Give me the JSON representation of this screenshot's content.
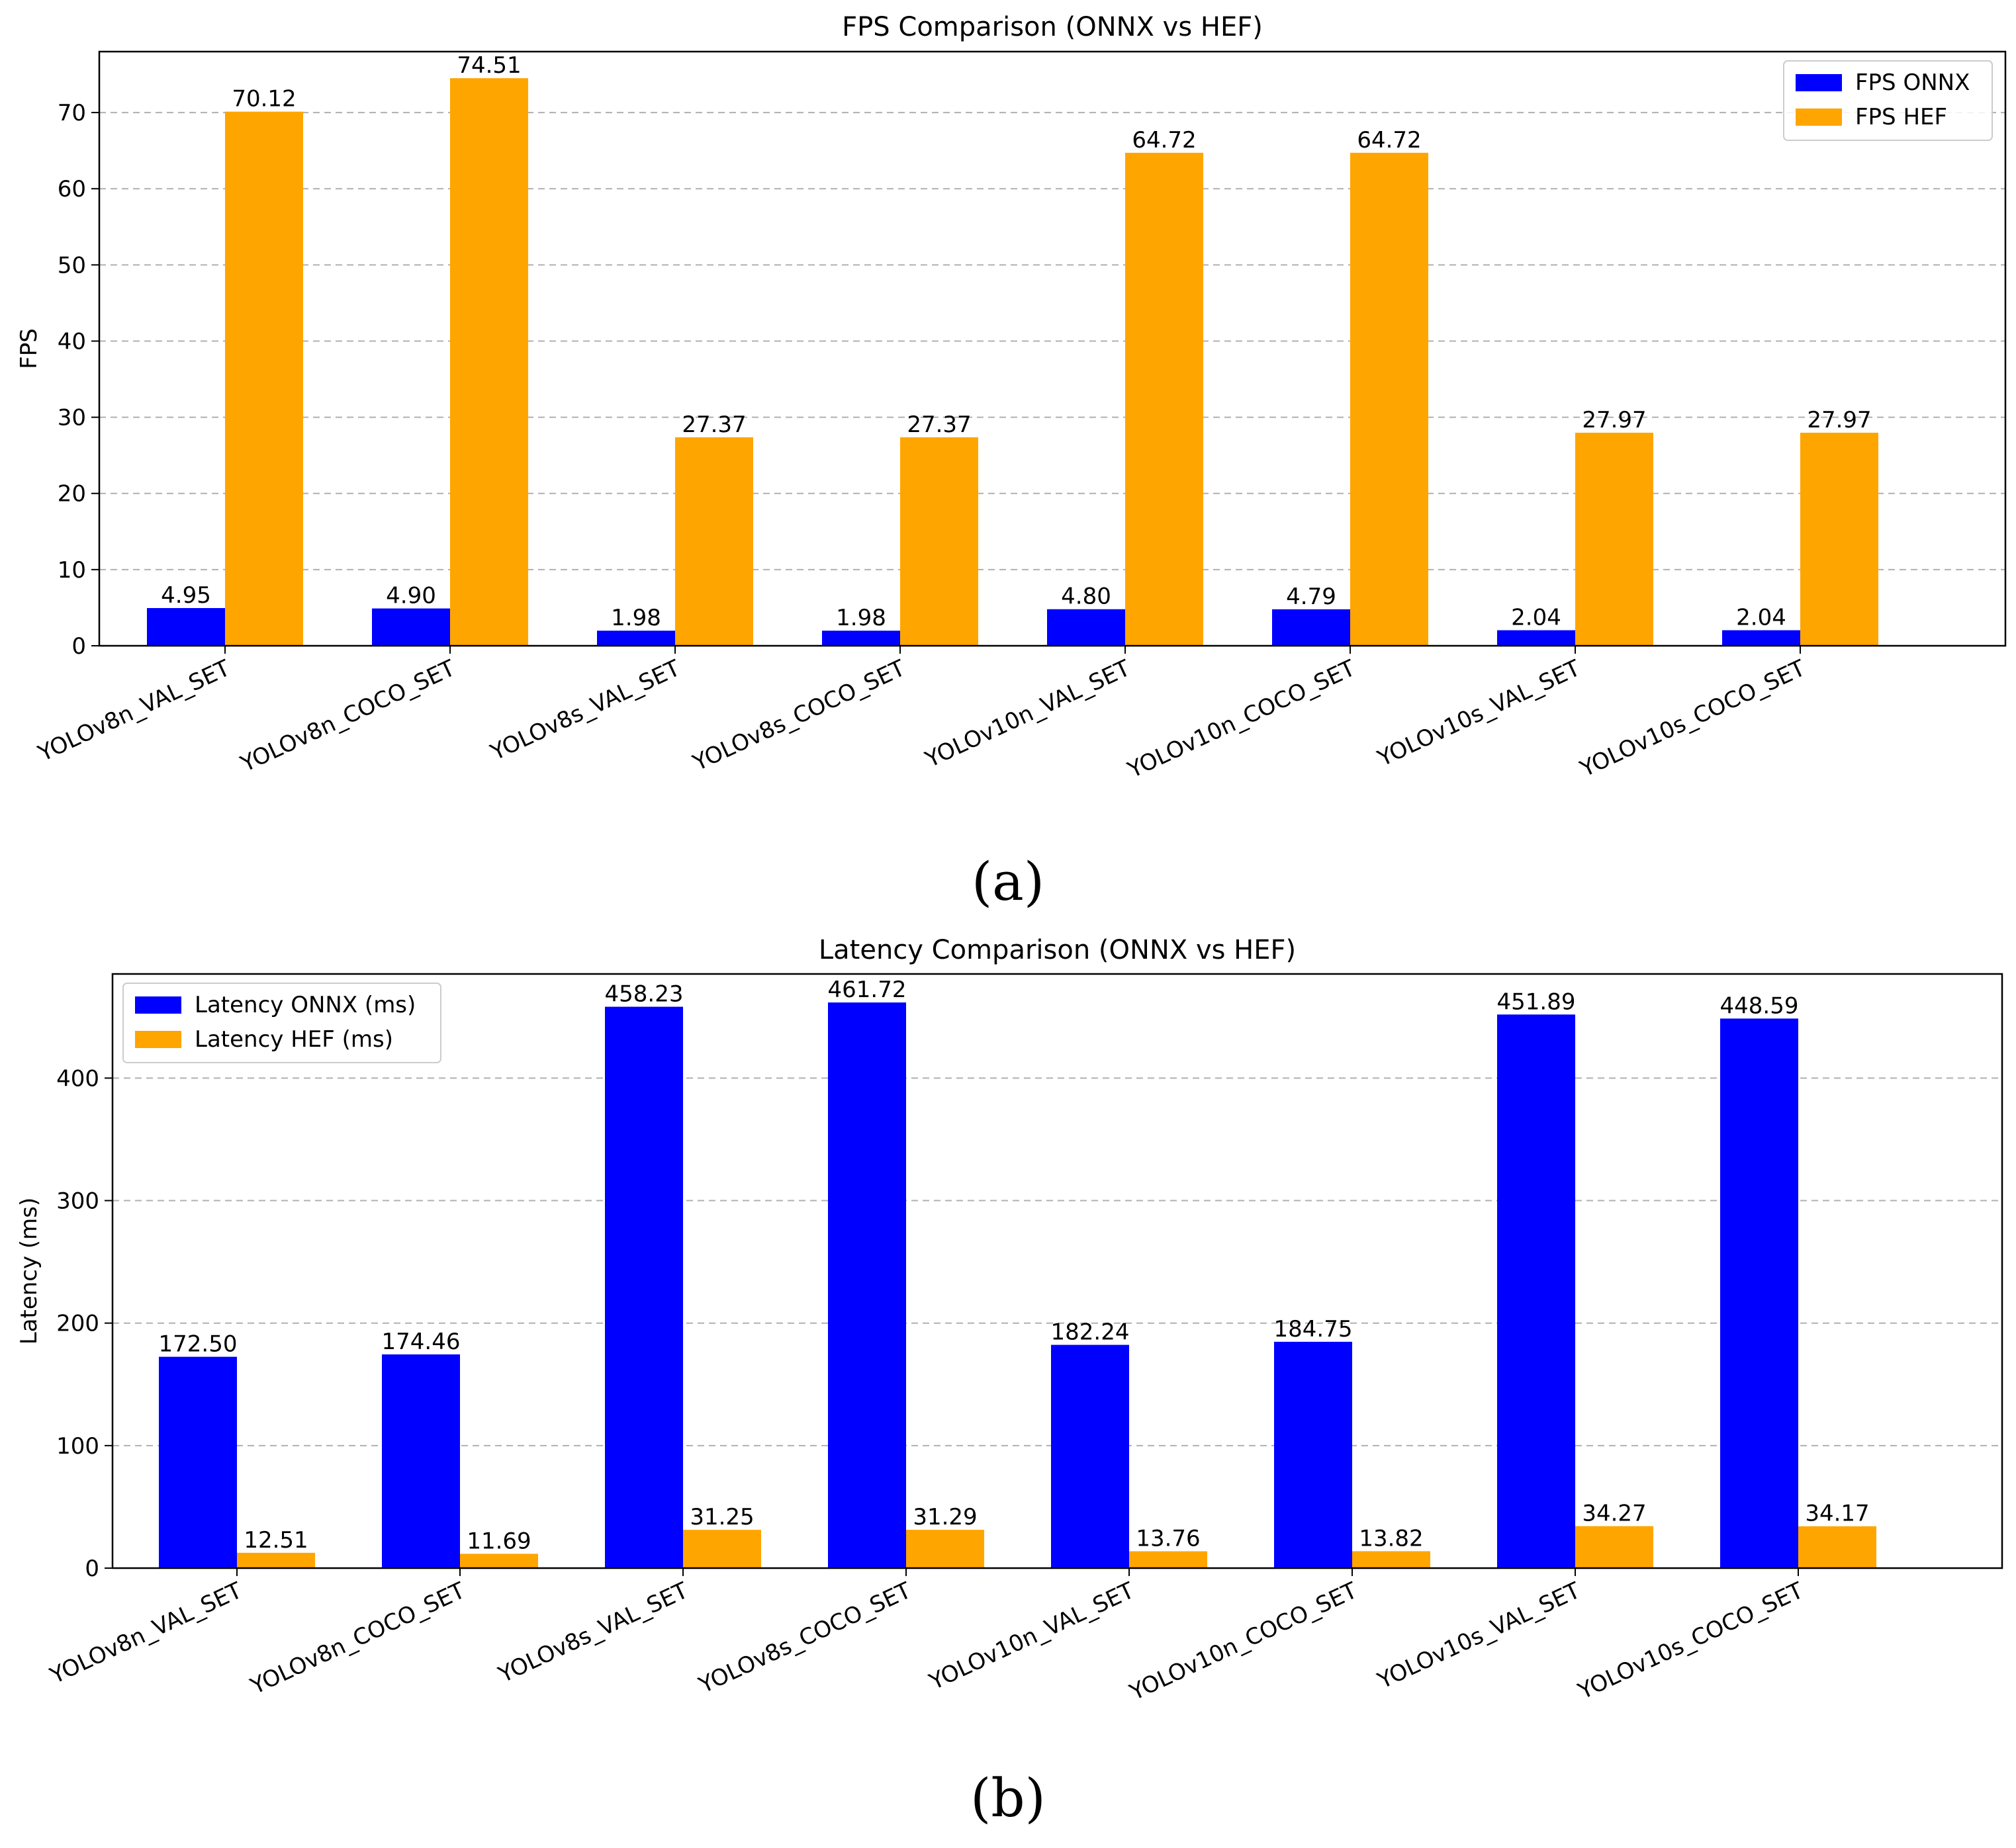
{
  "chart_data": [
    {
      "type": "bar",
      "panel_label": "(a)",
      "title": "FPS Comparison (ONNX vs HEF)",
      "xlabel": "",
      "ylabel": "FPS",
      "ylim": [
        0,
        78
      ],
      "yticks": [
        0,
        10,
        20,
        30,
        40,
        50,
        60,
        70
      ],
      "grid": true,
      "legend_position": "top-right",
      "categories": [
        "YOLOv8n_VAL_SET",
        "YOLOv8n_COCO_SET",
        "YOLOv8s_VAL_SET",
        "YOLOv8s_COCO_SET",
        "YOLOv10n_VAL_SET",
        "YOLOv10n_COCO_SET",
        "YOLOv10s_VAL_SET",
        "YOLOv10s_COCO_SET"
      ],
      "series": [
        {
          "name": "FPS ONNX",
          "color": "#0000ff",
          "values": [
            4.95,
            4.9,
            1.98,
            1.98,
            4.8,
            4.79,
            2.04,
            2.04
          ],
          "labels": [
            "4.95",
            "4.90",
            "1.98",
            "1.98",
            "4.80",
            "4.79",
            "2.04",
            "2.04"
          ]
        },
        {
          "name": "FPS HEF",
          "color": "#ffa500",
          "values": [
            70.12,
            74.51,
            27.37,
            27.37,
            64.72,
            64.72,
            27.97,
            27.97
          ],
          "labels": [
            "70.12",
            "74.51",
            "27.37",
            "27.37",
            "64.72",
            "64.72",
            "27.97",
            "27.97"
          ]
        }
      ]
    },
    {
      "type": "bar",
      "panel_label": "(b)",
      "title": "Latency Comparison (ONNX vs HEF)",
      "xlabel": "",
      "ylabel": "Latency (ms)",
      "ylim": [
        0,
        485
      ],
      "yticks": [
        0,
        100,
        200,
        300,
        400
      ],
      "grid": true,
      "legend_position": "top-left",
      "categories": [
        "YOLOv8n_VAL_SET",
        "YOLOv8n_COCO_SET",
        "YOLOv8s_VAL_SET",
        "YOLOv8s_COCO_SET",
        "YOLOv10n_VAL_SET",
        "YOLOv10n_COCO_SET",
        "YOLOv10s_VAL_SET",
        "YOLOv10s_COCO_SET"
      ],
      "series": [
        {
          "name": "Latency ONNX (ms)",
          "color": "#0000ff",
          "values": [
            172.5,
            174.46,
            458.23,
            461.72,
            182.24,
            184.75,
            451.89,
            448.59
          ],
          "labels": [
            "172.50",
            "174.46",
            "458.23",
            "461.72",
            "182.24",
            "184.75",
            "451.89",
            "448.59"
          ]
        },
        {
          "name": "Latency HEF (ms)",
          "color": "#ffa500",
          "values": [
            12.51,
            11.69,
            31.25,
            31.29,
            13.76,
            13.82,
            34.27,
            34.17
          ],
          "labels": [
            "12.51",
            "11.69",
            "31.25",
            "31.29",
            "13.76",
            "13.82",
            "34.27",
            "34.17"
          ]
        }
      ]
    }
  ]
}
